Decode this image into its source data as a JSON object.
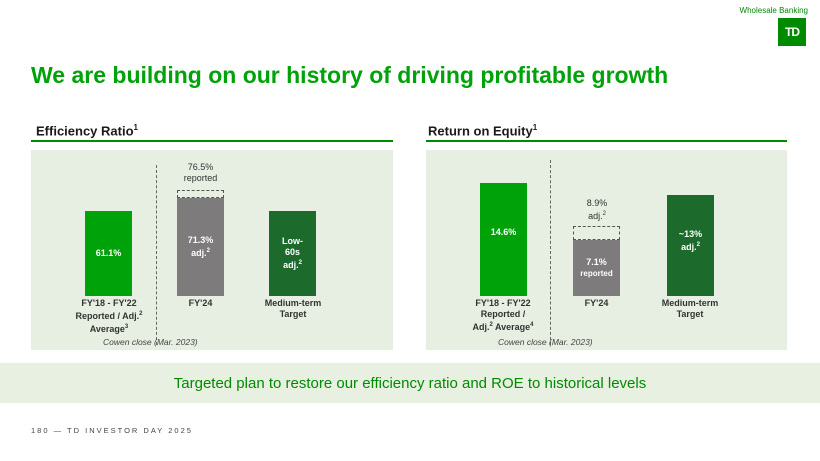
{
  "header": {
    "division": "Wholesale Banking",
    "logo": "TD"
  },
  "title": "We are building on our history of driving profitable growth",
  "chart_data": [
    {
      "type": "bar",
      "title": "Efficiency Ratio",
      "title_sup": "1",
      "unit": "%",
      "categories": [
        "FY'18 - FY'22 Reported / Adj.2 Average3",
        "FY'24",
        "Medium-term Target"
      ],
      "values": [
        61.1,
        71.3,
        62
      ],
      "reported_fy24": 76.5,
      "ylim": [
        0,
        90
      ],
      "bar_labels": [
        "61.1%",
        "71.3%",
        "Low-"
      ],
      "bar_sublabels": [
        "",
        "adj.",
        "60s"
      ],
      "bar_sub2": [
        "",
        "",
        "adj."
      ],
      "bar_sups": [
        "",
        "2",
        "2"
      ],
      "top_value": "76.5%",
      "top_value_note": "reported",
      "cat_lines": [
        [
          "FY'18 - FY'22",
          "Reported / Adj.",
          "Average"
        ],
        [
          "FY'24"
        ],
        [
          "Medium-term",
          "Target"
        ]
      ],
      "cat_sups": [
        [
          "",
          "2",
          "3"
        ],
        [
          ""
        ],
        [
          "",
          ""
        ]
      ],
      "note": "Cowen close (Mar. 2023)"
    },
    {
      "type": "bar",
      "title": "Return on Equity",
      "title_sup": "1",
      "unit": "%",
      "categories": [
        "FY'18 - FY'22 Reported / Adj.2 Average4",
        "FY'24",
        "Medium-term Target"
      ],
      "values": [
        14.6,
        7.1,
        13
      ],
      "adjusted_fy24": 8.9,
      "ylim": [
        0,
        17
      ],
      "bar_labels": [
        "14.6%",
        "7.1%",
        "~13%"
      ],
      "bar_sublabels": [
        "",
        "reported",
        "adj."
      ],
      "bar_sups": [
        "",
        "",
        "2"
      ],
      "top_value": "8.9%",
      "top_value_note": "adj.",
      "top_value_sup": "2",
      "cat_lines": [
        [
          "FY'18 - FY'22",
          "Reported /",
          "Adj.",
          "Average"
        ],
        [
          "FY'24"
        ],
        [
          "Medium-term",
          "Target"
        ]
      ],
      "cat_sups": [
        [
          "",
          "",
          "2",
          "4"
        ],
        [
          ""
        ],
        [
          "",
          ""
        ]
      ],
      "note": "Cowen close (Mar. 2023)"
    }
  ],
  "banner": "Targeted plan to restore our efficiency ratio and ROE to historical levels",
  "footer": "180 — TD INVESTOR DAY 2025",
  "colors": {
    "green": "#008a00",
    "dark_green": "#1c6b2c",
    "gray": "#7d7b7c",
    "panel": "#e6efe2"
  }
}
